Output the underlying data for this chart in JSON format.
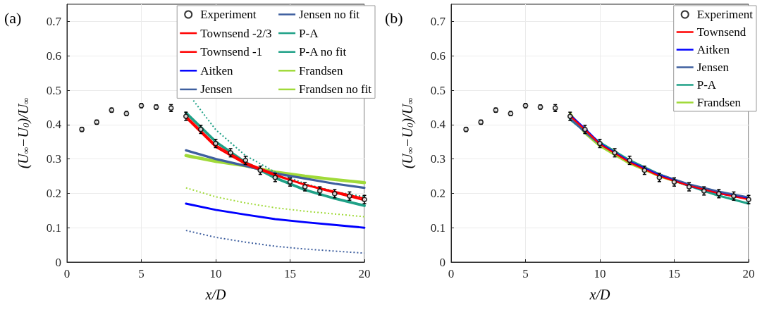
{
  "chart_data": [
    {
      "type": "line",
      "annotations": [
        "(a)"
      ],
      "xlabel": "x/D",
      "ylabel": "(U$_{∞}$−U$_{0}$)/U$_{∞}$",
      "xlim": [
        0,
        20
      ],
      "xticks": [
        0,
        5,
        10,
        15,
        20
      ],
      "ylim": [
        0,
        0.75
      ],
      "yticks": [
        0,
        0.1,
        0.2,
        0.3,
        0.4,
        0.5,
        0.6,
        0.7
      ],
      "grid": true,
      "legend": "top right",
      "series": [
        {
          "name": "Experiment",
          "type": "scatter",
          "marker": "circle",
          "color": "#000000",
          "x": [
            1,
            2,
            3,
            4,
            5,
            6,
            7,
            8,
            9,
            10,
            11,
            12,
            13,
            14,
            15,
            16,
            17,
            18,
            19,
            20
          ],
          "values": [
            0.386,
            0.407,
            0.442,
            0.432,
            0.455,
            0.451,
            0.448,
            0.424,
            0.386,
            0.345,
            0.318,
            0.296,
            0.267,
            0.246,
            0.233,
            0.219,
            0.207,
            0.199,
            0.192,
            0.182
          ],
          "errors": [
            0.006,
            0.006,
            0.006,
            0.006,
            0.006,
            0.006,
            0.01,
            0.012,
            0.012,
            0.012,
            0.012,
            0.012,
            0.012,
            0.012,
            0.012,
            0.012,
            0.012,
            0.012,
            0.012,
            0.012
          ]
        },
        {
          "name": "Townsend -2/3",
          "color": "#ff0000",
          "line_style": "solid",
          "x": [
            8,
            10,
            12,
            14,
            16,
            18,
            20
          ],
          "values": [
            0.425,
            0.34,
            0.29,
            0.255,
            0.225,
            0.205,
            0.185
          ]
        },
        {
          "name": "Townsend -1",
          "color": "#ff0000",
          "line_style": "solid",
          "x": [
            8,
            10,
            12,
            14,
            16,
            18,
            20
          ],
          "values": [
            0.42,
            0.335,
            0.285,
            0.252,
            0.225,
            0.202,
            0.18
          ]
        },
        {
          "name": "Aitken",
          "color": "#0000ff",
          "line_style": "solid",
          "x": [
            8,
            10,
            12,
            14,
            16,
            18,
            20
          ],
          "values": [
            0.17,
            0.152,
            0.138,
            0.125,
            0.116,
            0.108,
            0.1
          ]
        },
        {
          "name": "Jensen",
          "color": "#3e5f9f",
          "line_style": "solid",
          "x": [
            8,
            10,
            12,
            14,
            16,
            18,
            20
          ],
          "values": [
            0.325,
            0.3,
            0.28,
            0.258,
            0.243,
            0.228,
            0.216
          ]
        },
        {
          "name": "Jensen no fit",
          "color": "#3e5f9f",
          "line_style": "dotted",
          "x": [
            8,
            10,
            12,
            14,
            16,
            18,
            20
          ],
          "values": [
            0.092,
            0.072,
            0.058,
            0.046,
            0.038,
            0.032,
            0.026
          ]
        },
        {
          "name": "P-A",
          "color": "#1fa187",
          "line_style": "solid",
          "x": [
            8,
            10,
            12,
            14,
            16,
            18,
            20
          ],
          "values": [
            0.434,
            0.35,
            0.29,
            0.245,
            0.21,
            0.185,
            0.164
          ]
        },
        {
          "name": "P-A no fit",
          "color": "#1fa187",
          "line_style": "dotted",
          "x": [
            8.5,
            10,
            12,
            14,
            16,
            18,
            20
          ],
          "values": [
            0.47,
            0.385,
            0.31,
            0.262,
            0.228,
            0.205,
            0.19
          ]
        },
        {
          "name": "Frandsen",
          "color": "#a0da39",
          "line_style": "solid",
          "x": [
            8,
            10,
            12,
            14,
            16,
            18,
            20
          ],
          "values": [
            0.31,
            0.293,
            0.28,
            0.262,
            0.25,
            0.24,
            0.231
          ]
        },
        {
          "name": "Frandsen no fit",
          "color": "#a0da39",
          "line_style": "dotted",
          "x": [
            8,
            10,
            12,
            14,
            16,
            18,
            20
          ],
          "values": [
            0.216,
            0.19,
            0.172,
            0.158,
            0.148,
            0.14,
            0.132
          ]
        }
      ]
    },
    {
      "type": "line",
      "annotations": [
        "(b)"
      ],
      "xlabel": "x/D",
      "ylabel": "(U$_{∞}$−U$_{0}$)/U$_{∞}$",
      "xlim": [
        0,
        20
      ],
      "xticks": [
        0,
        5,
        10,
        15,
        20
      ],
      "ylim": [
        0,
        0.75
      ],
      "yticks": [
        0,
        0.1,
        0.2,
        0.3,
        0.4,
        0.5,
        0.6,
        0.7
      ],
      "grid": true,
      "legend": "top right",
      "series": [
        {
          "name": "Experiment",
          "type": "scatter",
          "marker": "circle",
          "color": "#000000",
          "x": [
            1,
            2,
            3,
            4,
            5,
            6,
            7,
            8,
            9,
            10,
            11,
            12,
            13,
            14,
            15,
            16,
            17,
            18,
            19,
            20
          ],
          "values": [
            0.386,
            0.407,
            0.442,
            0.432,
            0.455,
            0.451,
            0.448,
            0.424,
            0.386,
            0.345,
            0.318,
            0.296,
            0.267,
            0.246,
            0.233,
            0.219,
            0.207,
            0.199,
            0.192,
            0.182
          ],
          "errors": [
            0.006,
            0.006,
            0.006,
            0.006,
            0.006,
            0.006,
            0.01,
            0.012,
            0.012,
            0.012,
            0.012,
            0.012,
            0.012,
            0.012,
            0.012,
            0.012,
            0.012,
            0.012,
            0.012,
            0.012
          ]
        },
        {
          "name": "Townsend",
          "color": "#ff0000",
          "line_style": "solid",
          "x": [
            8,
            9,
            10,
            12,
            14,
            16,
            18,
            20
          ],
          "values": [
            0.425,
            0.385,
            0.343,
            0.29,
            0.25,
            0.222,
            0.2,
            0.182
          ]
        },
        {
          "name": "Aitken",
          "color": "#0000ff",
          "line_style": "solid",
          "x": [
            8,
            9,
            10,
            12,
            14,
            16,
            18,
            20
          ],
          "values": [
            0.428,
            0.388,
            0.345,
            0.292,
            0.252,
            0.222,
            0.2,
            0.184
          ]
        },
        {
          "name": "Jensen",
          "color": "#3e5f9f",
          "line_style": "solid",
          "x": [
            8,
            9,
            10,
            12,
            14,
            16,
            18,
            20
          ],
          "values": [
            0.418,
            0.378,
            0.343,
            0.293,
            0.255,
            0.226,
            0.205,
            0.188
          ]
        },
        {
          "name": "P-A",
          "color": "#1fa187",
          "line_style": "solid",
          "x": [
            8,
            9,
            10,
            12,
            14,
            16,
            18,
            20
          ],
          "values": [
            0.415,
            0.38,
            0.348,
            0.296,
            0.255,
            0.222,
            0.193,
            0.17
          ]
        },
        {
          "name": "Frandsen",
          "color": "#a0da39",
          "line_style": "solid",
          "x": [
            8,
            9,
            10,
            12,
            14,
            16,
            18,
            20
          ],
          "values": [
            0.432,
            0.375,
            0.338,
            0.287,
            0.25,
            0.222,
            0.202,
            0.186
          ]
        }
      ]
    }
  ]
}
